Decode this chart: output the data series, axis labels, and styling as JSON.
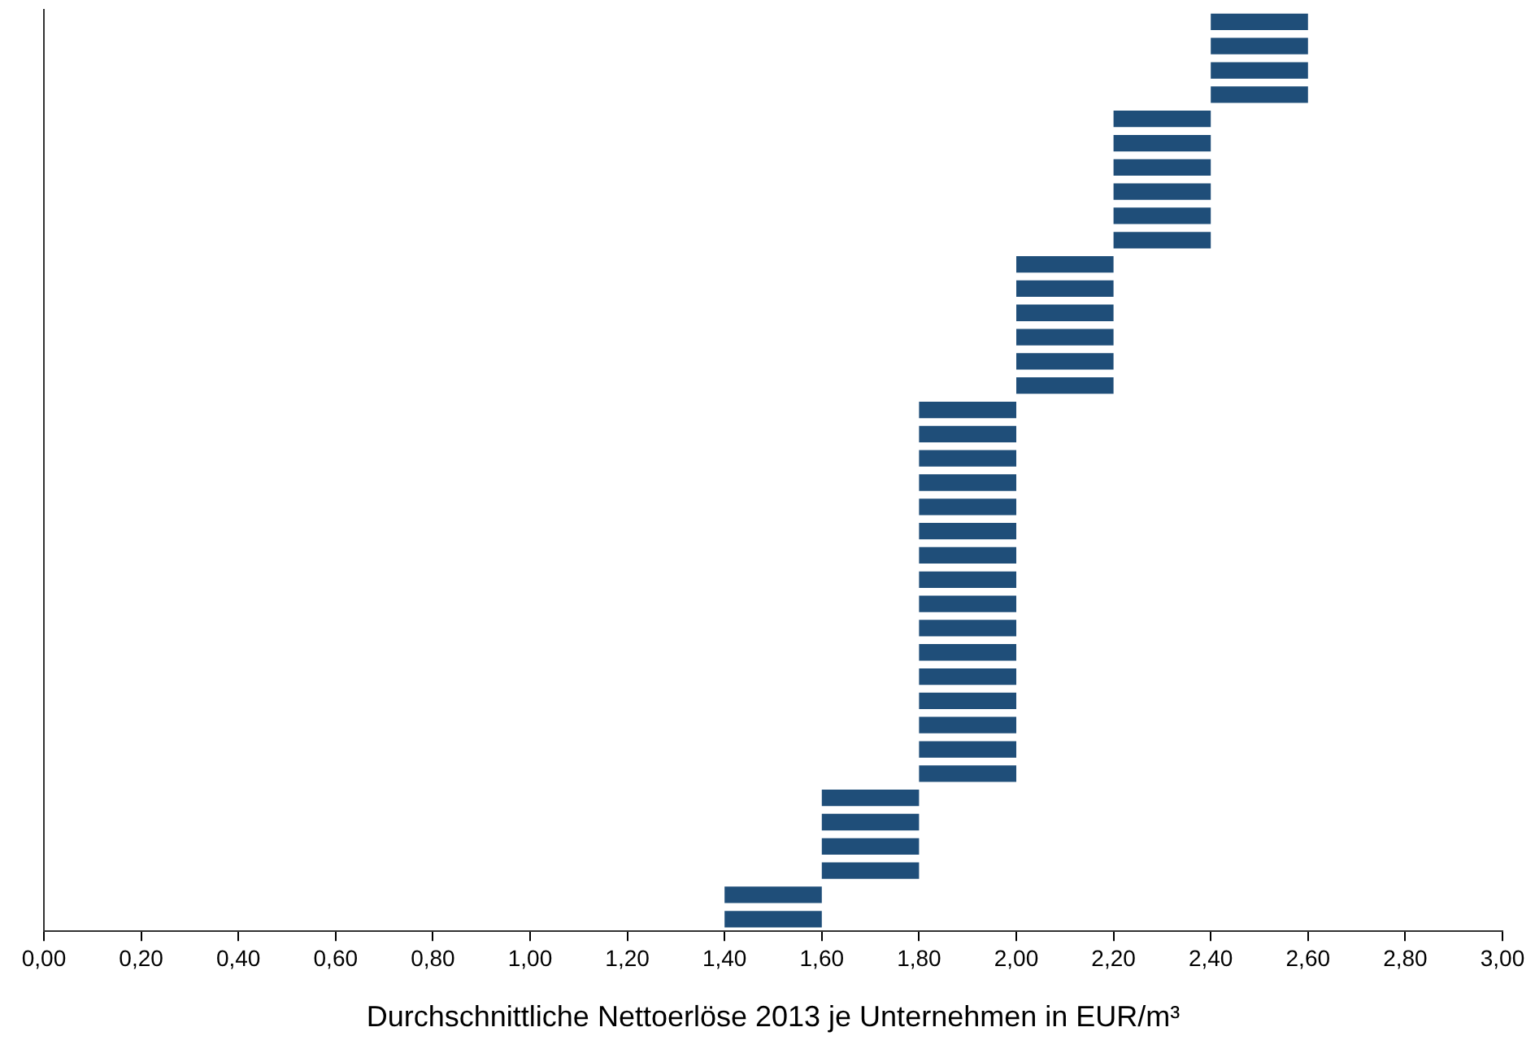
{
  "chart_data": {
    "type": "bar",
    "orientation": "horizontal",
    "xlabel": "Durchschnittliche Nettoerlöse 2013 je Unternehmen in EUR/m³",
    "categories": [
      null,
      null,
      null,
      null,
      null,
      null,
      null,
      null,
      null,
      null,
      null,
      null,
      null,
      null,
      null,
      null,
      null,
      null,
      null,
      null,
      null,
      null,
      null,
      null,
      null,
      null,
      null,
      null,
      null,
      null,
      null,
      null,
      null,
      null,
      null,
      null,
      null,
      null
    ],
    "base": [
      2.4,
      2.4,
      2.4,
      2.4,
      2.2,
      2.2,
      2.2,
      2.2,
      2.2,
      2.2,
      2.0,
      2.0,
      2.0,
      2.0,
      2.0,
      2.0,
      1.8,
      1.8,
      1.8,
      1.8,
      1.8,
      1.8,
      1.8,
      1.8,
      1.8,
      1.8,
      1.8,
      1.8,
      1.8,
      1.8,
      1.8,
      1.8,
      1.6,
      1.6,
      1.6,
      1.6,
      1.4,
      1.4
    ],
    "values": [
      0.2,
      0.2,
      0.2,
      0.2,
      0.2,
      0.2,
      0.2,
      0.2,
      0.2,
      0.2,
      0.2,
      0.2,
      0.2,
      0.2,
      0.2,
      0.2,
      0.2,
      0.2,
      0.2,
      0.2,
      0.2,
      0.2,
      0.2,
      0.2,
      0.2,
      0.2,
      0.2,
      0.2,
      0.2,
      0.2,
      0.2,
      0.2,
      0.2,
      0.2,
      0.2,
      0.2,
      0.2,
      0.2
    ],
    "color": "#1f4e79",
    "xlim": [
      0,
      3
    ],
    "xticks": [
      {
        "value": 0,
        "label": "0,00"
      },
      {
        "value": 0.2,
        "label": "0,20"
      },
      {
        "value": 0.4,
        "label": "0,40"
      },
      {
        "value": 0.6,
        "label": "0,60"
      },
      {
        "value": 0.8,
        "label": "0,80"
      },
      {
        "value": 1,
        "label": "1,00"
      },
      {
        "value": 1.2,
        "label": "1,20"
      },
      {
        "value": 1.4,
        "label": "1,40"
      },
      {
        "value": 1.6,
        "label": "1,60"
      },
      {
        "value": 1.8,
        "label": "1,80"
      },
      {
        "value": 2,
        "label": "2,00"
      },
      {
        "value": 2.2,
        "label": "2,20"
      },
      {
        "value": 2.4,
        "label": "2,40"
      },
      {
        "value": 2.6,
        "label": "2,60"
      },
      {
        "value": 2.8,
        "label": "2,80"
      },
      {
        "value": 3,
        "label": "3,00"
      }
    ],
    "tick_labels": "x",
    "grid": false,
    "legend": false
  }
}
